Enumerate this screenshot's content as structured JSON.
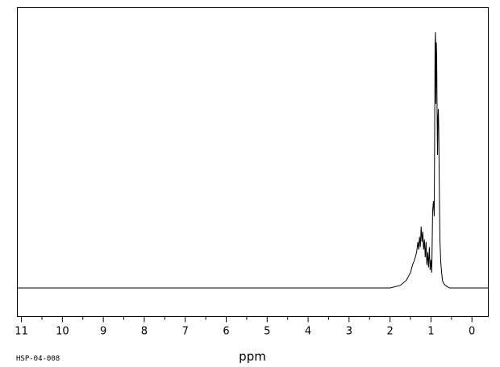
{
  "chart_data": {
    "type": "line",
    "title": "",
    "xlabel": "ppm",
    "ylabel": "",
    "x_reversed": true,
    "xlim": [
      11.1,
      -0.4
    ],
    "ylim": [
      -0.16,
      1.0
    ],
    "grid": false,
    "legend": "none",
    "line_color": "#000000",
    "xticks": [
      11,
      10,
      9,
      8,
      7,
      6,
      5,
      4,
      3,
      2,
      1,
      0
    ],
    "xtick_labels": [
      "11",
      "10",
      "9",
      "8",
      "7",
      "6",
      "5",
      "4",
      "3",
      "2",
      "1",
      "0"
    ],
    "sample_id": "HSP-04-008",
    "series": [
      {
        "x": [
          11.1,
          2.0,
          1.75,
          1.6,
          1.5,
          1.45,
          1.4,
          1.35,
          1.32,
          1.3,
          1.28,
          1.26,
          1.24,
          1.22,
          1.2,
          1.18,
          1.16,
          1.14,
          1.12,
          1.1,
          1.08,
          1.06,
          1.04,
          1.02,
          1.0,
          0.98,
          0.96,
          0.94,
          0.92,
          0.9,
          0.89,
          0.88,
          0.87,
          0.86,
          0.85,
          0.84,
          0.83,
          0.82,
          0.81,
          0.8,
          0.79,
          0.78,
          0.76,
          0.74,
          0.72,
          0.7,
          0.65,
          0.55,
          0.4,
          -0.4
        ],
        "y": [
          0.0,
          0.0,
          0.01,
          0.03,
          0.06,
          0.09,
          0.11,
          0.14,
          0.18,
          0.15,
          0.2,
          0.16,
          0.24,
          0.18,
          0.22,
          0.15,
          0.19,
          0.12,
          0.18,
          0.09,
          0.14,
          0.08,
          0.16,
          0.07,
          0.11,
          0.06,
          0.3,
          0.34,
          0.28,
          0.95,
          1.0,
          0.72,
          0.96,
          0.9,
          0.68,
          0.52,
          0.66,
          0.7,
          0.62,
          0.45,
          0.3,
          0.18,
          0.1,
          0.06,
          0.03,
          0.02,
          0.01,
          0.0,
          0.0,
          0.0
        ]
      }
    ]
  }
}
